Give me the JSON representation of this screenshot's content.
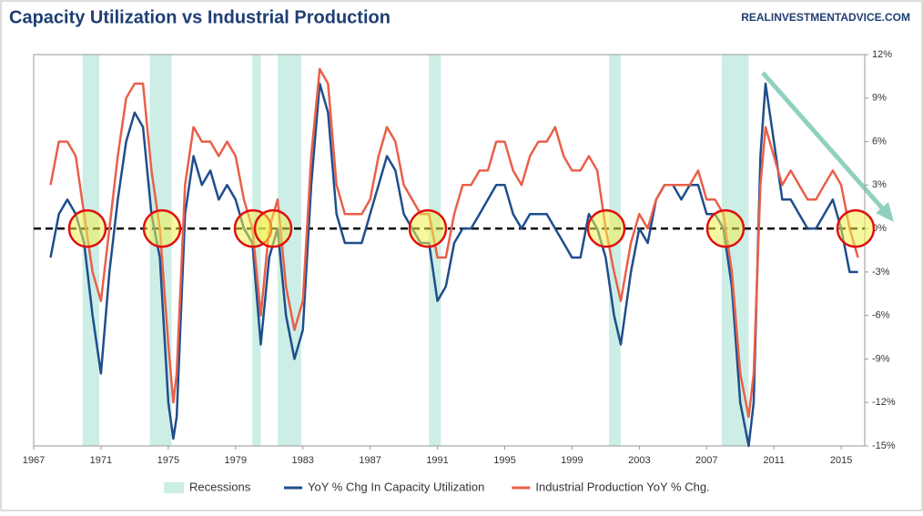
{
  "chart_data": {
    "type": "line",
    "title": "Capacity Utilization vs Industrial Production",
    "source": "REALINVESTMENTADVICE.COM",
    "x": [
      1968,
      1968.5,
      1969,
      1969.5,
      1970,
      1970.5,
      1971,
      1971.5,
      1972,
      1972.5,
      1973,
      1973.5,
      1974,
      1974.5,
      1975,
      1975.3,
      1975.5,
      1976,
      1976.5,
      1977,
      1977.5,
      1978,
      1978.5,
      1979,
      1979.5,
      1980,
      1980.5,
      1981,
      1981.5,
      1982,
      1982.5,
      1983,
      1983.5,
      1984,
      1984.5,
      1985,
      1985.5,
      1986,
      1986.5,
      1987,
      1987.5,
      1988,
      1988.5,
      1989,
      1989.5,
      1990,
      1990.5,
      1991,
      1991.5,
      1992,
      1992.5,
      1993,
      1993.5,
      1994,
      1994.5,
      1995,
      1995.5,
      1996,
      1996.5,
      1997,
      1997.5,
      1998,
      1998.5,
      1999,
      1999.5,
      2000,
      2000.5,
      2001,
      2001.5,
      2001.9,
      2002.5,
      2003,
      2003.5,
      2004,
      2004.5,
      2005,
      2005.5,
      2006,
      2006.5,
      2007,
      2007.5,
      2008,
      2008.5,
      2009,
      2009.5,
      2009.8,
      2010.2,
      2010.5,
      2011,
      2011.5,
      2012,
      2012.5,
      2013,
      2013.5,
      2014,
      2014.5,
      2015,
      2015.5,
      2016
    ],
    "series": [
      {
        "name": "YoY % Chg In Capacity Utilization",
        "color": "#1f4e8c",
        "values": [
          -2,
          1,
          2,
          1,
          -1,
          -6,
          -10,
          -3,
          2,
          6,
          8,
          7,
          1,
          -2,
          -12,
          -14.5,
          -13,
          1,
          5,
          3,
          4,
          2,
          3,
          2,
          0,
          -1,
          -8,
          -2,
          0,
          -6,
          -9,
          -7,
          3,
          10,
          8,
          1,
          -1,
          -1,
          -1,
          1,
          3,
          5,
          4,
          1,
          0,
          -1,
          -1,
          -5,
          -4,
          -1,
          0,
          0,
          1,
          2,
          3,
          3,
          1,
          0,
          1,
          1,
          1,
          0,
          -1,
          -2,
          -2,
          1,
          0,
          -2,
          -6,
          -8,
          -3,
          0,
          -1,
          2,
          3,
          3,
          2,
          3,
          3,
          1,
          1,
          0,
          -4,
          -12,
          -15,
          -12,
          5,
          10,
          6,
          2,
          2,
          1,
          0,
          0,
          1,
          2,
          0,
          -3,
          -3
        ]
      },
      {
        "name": "Industrial Production YoY % Chg.",
        "color": "#e8604a",
        "values": [
          3,
          6,
          6,
          5,
          1,
          -3,
          -5,
          0,
          5,
          9,
          10,
          10,
          4,
          0,
          -8,
          -12,
          -10,
          3,
          7,
          6,
          6,
          5,
          6,
          5,
          2,
          0,
          -6,
          0,
          2,
          -4,
          -7,
          -5,
          5,
          11,
          10,
          3,
          1,
          1,
          1,
          2,
          5,
          7,
          6,
          3,
          2,
          1,
          1,
          -2,
          -2,
          1,
          3,
          3,
          4,
          4,
          6,
          6,
          4,
          3,
          5,
          6,
          6,
          7,
          5,
          4,
          4,
          5,
          4,
          0,
          -3,
          -5,
          -1,
          1,
          0,
          2,
          3,
          3,
          3,
          3,
          4,
          2,
          2,
          1,
          -3,
          -10,
          -13,
          -10,
          3,
          7,
          5,
          3,
          4,
          3,
          2,
          2,
          3,
          4,
          3,
          0,
          -2
        ]
      }
    ],
    "recessions": {
      "name": "Recessions",
      "color": "#cdeee6",
      "spans": [
        [
          1969.9,
          1970.9
        ],
        [
          1973.9,
          1975.2
        ],
        [
          1980.0,
          1980.5
        ],
        [
          1981.5,
          1982.9
        ],
        [
          1990.5,
          1991.2
        ],
        [
          2001.2,
          2001.9
        ],
        [
          2007.9,
          2009.5
        ]
      ]
    },
    "xlim": [
      1967,
      2016.4
    ],
    "xticks": [
      1967,
      1971,
      1975,
      1979,
      1983,
      1987,
      1991,
      1995,
      1999,
      2003,
      2007,
      2011,
      2015
    ],
    "ylim": [
      -15,
      12
    ],
    "yticks": [
      {
        "value": -15,
        "label": "-15%"
      },
      {
        "value": -12,
        "label": "-12%"
      },
      {
        "value": -9,
        "label": "-9%"
      },
      {
        "value": -6,
        "label": "-6%"
      },
      {
        "value": -3,
        "label": "-3%"
      },
      {
        "value": 0,
        "label": "0%"
      },
      {
        "value": 3,
        "label": "3%"
      },
      {
        "value": 6,
        "label": "6%"
      },
      {
        "value": 9,
        "label": "9%"
      },
      {
        "value": 12,
        "label": "12%"
      }
    ],
    "legend": "bottom"
  }
}
